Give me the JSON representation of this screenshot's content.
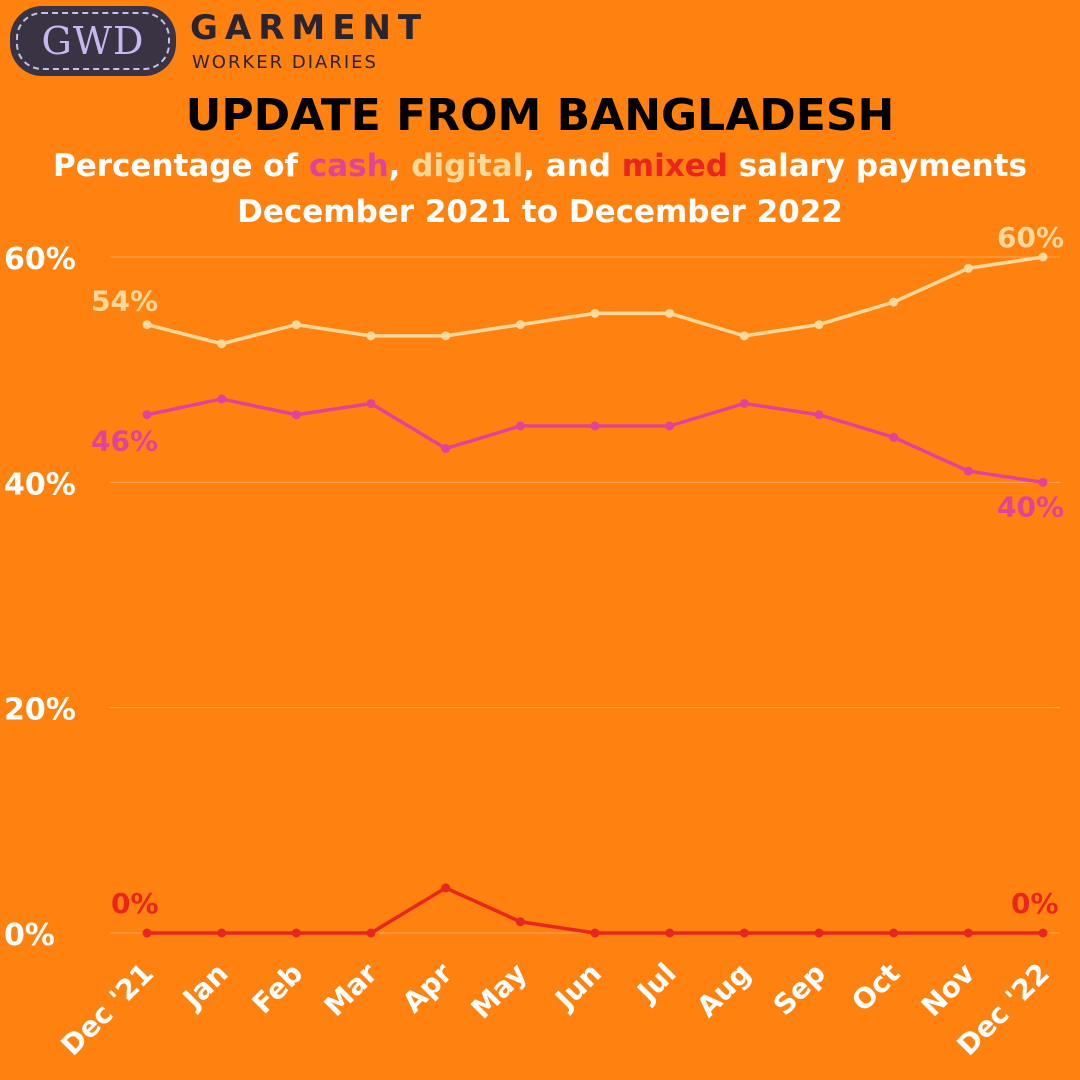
{
  "brand": {
    "logo_text": "GWD",
    "name": "GARMENT",
    "subname": "WORKER DIARIES"
  },
  "title": "UPDATE FROM BANGLADESH",
  "subtitle": {
    "line1_prefix": "Percentage of ",
    "cash": "cash",
    "sep1": ", ",
    "digital": "digital",
    "sep2": ", and ",
    "mixed": "mixed",
    "line1_suffix": " salary payments",
    "line2": "December 2021 to December 2022"
  },
  "colors": {
    "background": "#FF8210",
    "cash": "#E0449A",
    "digital": "#FFD89A",
    "mixed": "#E8261E",
    "axis_text": "#FFFFFF",
    "grid": "#FFA85A"
  },
  "chart_data": {
    "type": "line",
    "categories": [
      "Dec '21",
      "Jan",
      "Feb",
      "Mar",
      "Apr",
      "May",
      "Jun",
      "Jul",
      "Aug",
      "Sep",
      "Oct",
      "Nov",
      "Dec '22"
    ],
    "ylim": [
      0,
      60
    ],
    "yticks": [
      0,
      20,
      40,
      60
    ],
    "ytick_labels": [
      "0%",
      "20%",
      "40%",
      "60%"
    ],
    "grid": true,
    "series": [
      {
        "name": "digital",
        "color": "#FFD89A",
        "values": [
          54,
          52.3,
          54,
          53,
          53,
          54,
          55,
          55,
          53,
          54,
          56,
          59,
          60
        ],
        "start_label": "54%",
        "end_label": "60%"
      },
      {
        "name": "cash",
        "color": "#E0449A",
        "values": [
          46,
          47.4,
          46,
          47,
          43,
          45,
          45,
          45,
          47,
          46,
          44,
          41,
          40
        ],
        "start_label": "46%",
        "end_label": "40%"
      },
      {
        "name": "mixed",
        "color": "#E8261E",
        "values": [
          0,
          0,
          0,
          0,
          4,
          1,
          0,
          0,
          0,
          0,
          0,
          0,
          0
        ],
        "start_label": "0%",
        "end_label": "0%"
      }
    ]
  }
}
